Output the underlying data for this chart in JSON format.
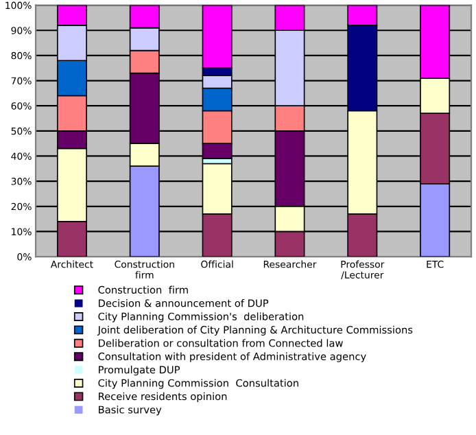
{
  "chart_data": {
    "type": "bar",
    "stacked": true,
    "categories": [
      "Architect",
      "Construction\nfirm",
      "Official",
      "Researcher",
      "Professor\n/Lecturer",
      "ETC"
    ],
    "series": [
      {
        "name": "Basic survey",
        "color": "#9999ff",
        "values": [
          0,
          36,
          0,
          0,
          0,
          29
        ]
      },
      {
        "name": "Receive residents opinion",
        "color": "#993366",
        "values": [
          14,
          0,
          17,
          10,
          17,
          28
        ]
      },
      {
        "name": "City Planning Commission  Consultation",
        "color": "#ffffcc",
        "values": [
          29,
          9,
          20,
          10,
          41,
          14
        ]
      },
      {
        "name": "Promulgate DUP",
        "color": "#ccffff",
        "values": [
          0,
          0,
          2,
          0,
          0,
          0
        ]
      },
      {
        "name": "Consultation with president of Administrative agency",
        "color": "#660066",
        "values": [
          7,
          28,
          6,
          30,
          0,
          0
        ]
      },
      {
        "name": "Deliberation or consultation from Connected law",
        "color": "#ff8080",
        "values": [
          14,
          9,
          13,
          10,
          0,
          0
        ]
      },
      {
        "name": "Joint deliberation of City Planning & Architucture Commissions",
        "color": "#0066cc",
        "values": [
          14,
          0,
          9,
          0,
          0,
          0
        ]
      },
      {
        "name": "City Planning Commission's  deliberation",
        "color": "#ccccff",
        "values": [
          14,
          9,
          5,
          30,
          0,
          0
        ]
      },
      {
        "name": "Decision & announcement of DUP",
        "color": "#000080",
        "values": [
          0,
          0,
          3,
          0,
          34,
          0
        ]
      },
      {
        "name": "Construction  firm",
        "color": "#ff00ff",
        "values": [
          8,
          9,
          25,
          10,
          8,
          29
        ]
      }
    ],
    "ylim": [
      0,
      100
    ],
    "yticks": [
      {
        "value": 0,
        "label": "0%"
      },
      {
        "value": 10,
        "label": "10%"
      },
      {
        "value": 20,
        "label": "20%"
      },
      {
        "value": 30,
        "label": "30%"
      },
      {
        "value": 40,
        "label": "40%"
      },
      {
        "value": 50,
        "label": "50%"
      },
      {
        "value": 60,
        "label": "60%"
      },
      {
        "value": 70,
        "label": "70%"
      },
      {
        "value": 80,
        "label": "80%"
      },
      {
        "value": 90,
        "label": "90%"
      },
      {
        "value": 100,
        "label": "100%"
      }
    ],
    "grid": "y",
    "legend": "bottom"
  }
}
